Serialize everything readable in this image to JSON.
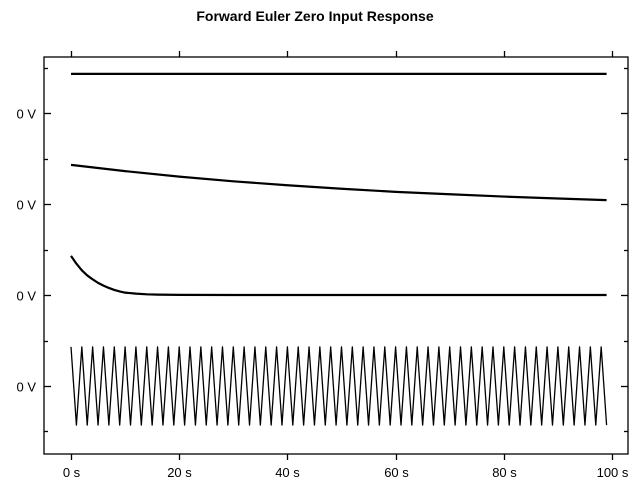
{
  "chart_data": {
    "type": "line",
    "title": "Forward Euler Zero Input Response",
    "xlabel": "",
    "ylabel": "",
    "xlim": [
      0,
      100
    ],
    "x_ticks": [
      {
        "value": 0,
        "label": "0 s"
      },
      {
        "value": 20,
        "label": "20 s"
      },
      {
        "value": 40,
        "label": "40 s"
      },
      {
        "value": 60,
        "label": "60 s"
      },
      {
        "value": 80,
        "label": "80 s"
      },
      {
        "value": 100,
        "label": "100 s"
      }
    ],
    "stacked_strips": true,
    "strip_ylim": [
      -1.15,
      1.15
    ],
    "y_tick_labels": [
      "0 V",
      "0 V",
      "0 V",
      "0 V"
    ],
    "series": [
      {
        "x": [
          0,
          99
        ],
        "y": [
          1,
          1
        ],
        "line_width": 2.2
      },
      {
        "x": [
          0,
          10,
          20,
          30,
          40,
          50,
          60,
          70,
          80,
          90,
          99
        ],
        "y": [
          1,
          0.84,
          0.7,
          0.58,
          0.48,
          0.39,
          0.31,
          0.25,
          0.19,
          0.14,
          0.1
        ],
        "line_width": 2.2
      },
      {
        "x": [
          0,
          1,
          2,
          3,
          4,
          5,
          6,
          7,
          8,
          9,
          10,
          12,
          14,
          16,
          20,
          30,
          40,
          60,
          80,
          99
        ],
        "y": [
          1,
          0.8,
          0.63,
          0.5,
          0.4,
          0.31,
          0.24,
          0.18,
          0.13,
          0.09,
          0.06,
          0.035,
          0.018,
          0.01,
          0.004,
          0,
          0,
          0,
          0,
          0
        ],
        "line_width": 2.2
      },
      {
        "x_start": 0,
        "x_end": 99,
        "x_step": 1,
        "y_pattern": [
          1,
          -1
        ],
        "line_width": 1.3
      }
    ]
  }
}
